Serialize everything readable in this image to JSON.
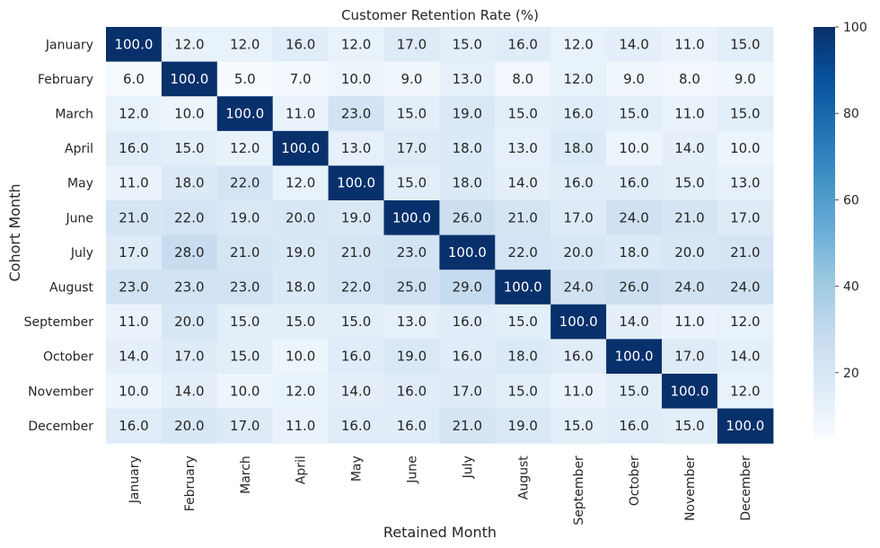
{
  "chart_data": {
    "type": "heatmap",
    "title": "Customer Retention Rate (%)",
    "xlabel": "Retained Month",
    "ylabel": "Cohort Month",
    "x_categories": [
      "January",
      "February",
      "March",
      "April",
      "May",
      "June",
      "July",
      "August",
      "September",
      "October",
      "November",
      "December"
    ],
    "y_categories": [
      "January",
      "February",
      "March",
      "April",
      "May",
      "June",
      "July",
      "August",
      "September",
      "October",
      "November",
      "December"
    ],
    "values": [
      [
        100.0,
        12.0,
        12.0,
        16.0,
        12.0,
        17.0,
        15.0,
        16.0,
        12.0,
        14.0,
        11.0,
        15.0
      ],
      [
        6.0,
        100.0,
        5.0,
        7.0,
        10.0,
        9.0,
        13.0,
        8.0,
        12.0,
        9.0,
        8.0,
        9.0
      ],
      [
        12.0,
        10.0,
        100.0,
        11.0,
        23.0,
        15.0,
        19.0,
        15.0,
        16.0,
        15.0,
        11.0,
        15.0
      ],
      [
        16.0,
        15.0,
        12.0,
        100.0,
        13.0,
        17.0,
        18.0,
        13.0,
        18.0,
        10.0,
        14.0,
        10.0
      ],
      [
        11.0,
        18.0,
        22.0,
        12.0,
        100.0,
        15.0,
        18.0,
        14.0,
        16.0,
        16.0,
        15.0,
        13.0
      ],
      [
        21.0,
        22.0,
        19.0,
        20.0,
        19.0,
        100.0,
        26.0,
        21.0,
        17.0,
        24.0,
        21.0,
        17.0
      ],
      [
        17.0,
        28.0,
        21.0,
        19.0,
        21.0,
        23.0,
        100.0,
        22.0,
        20.0,
        18.0,
        20.0,
        21.0
      ],
      [
        23.0,
        23.0,
        23.0,
        18.0,
        22.0,
        25.0,
        29.0,
        100.0,
        24.0,
        26.0,
        24.0,
        24.0
      ],
      [
        11.0,
        20.0,
        15.0,
        15.0,
        15.0,
        13.0,
        16.0,
        15.0,
        100.0,
        14.0,
        11.0,
        12.0
      ],
      [
        14.0,
        17.0,
        15.0,
        10.0,
        16.0,
        19.0,
        16.0,
        18.0,
        16.0,
        100.0,
        17.0,
        14.0
      ],
      [
        10.0,
        14.0,
        10.0,
        12.0,
        14.0,
        16.0,
        17.0,
        15.0,
        11.0,
        15.0,
        100.0,
        12.0
      ],
      [
        16.0,
        20.0,
        17.0,
        11.0,
        16.0,
        16.0,
        21.0,
        19.0,
        15.0,
        16.0,
        15.0,
        100.0
      ]
    ],
    "value_format": "0.0",
    "colormap": "Blues",
    "vmin": 5.0,
    "vmax": 100.0,
    "colorbar_ticks": [
      20,
      40,
      60,
      80,
      100
    ],
    "grid": false,
    "legend": "colorbar-right"
  }
}
